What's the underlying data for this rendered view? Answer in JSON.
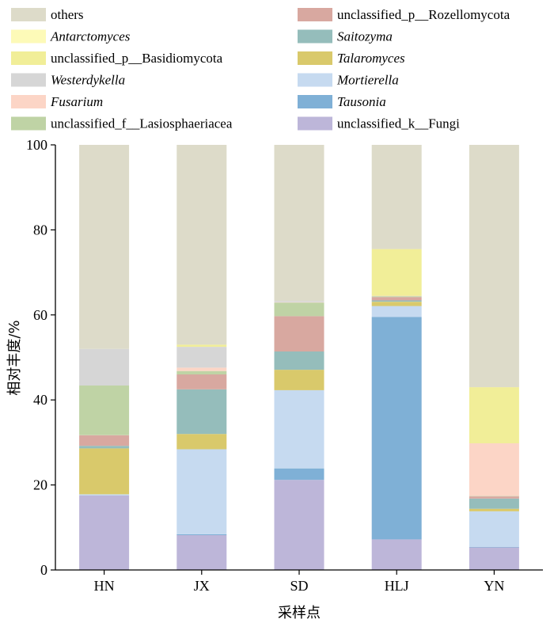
{
  "chart_data": {
    "type": "bar",
    "stacked": true,
    "xlabel": "采样点",
    "ylabel": "相对丰度/%",
    "ylim": [
      0,
      100
    ],
    "yticks": [
      0,
      20,
      40,
      60,
      80,
      100
    ],
    "categories": [
      "HN",
      "JX",
      "SD",
      "HLJ",
      "YN"
    ],
    "series": [
      {
        "name": "unclassified_k__Fungi",
        "color": "#bdb6d9",
        "italic": false,
        "values": [
          17.5,
          8.2,
          21.2,
          7.2,
          5.3
        ]
      },
      {
        "name": "Tausonia",
        "color": "#7fb0d6",
        "italic": true,
        "values": [
          0,
          0.2,
          2.7,
          52.3,
          0.1
        ]
      },
      {
        "name": "Mortierella",
        "color": "#c6daf0",
        "italic": true,
        "values": [
          0.3,
          20.0,
          18.4,
          2.6,
          8.4
        ]
      },
      {
        "name": "Talaromyces",
        "color": "#d9c96b",
        "italic": true,
        "values": [
          10.8,
          3.6,
          4.8,
          1.0,
          0.6
        ]
      },
      {
        "name": "Saitozyma",
        "color": "#95bdbb",
        "italic": true,
        "values": [
          0.6,
          10.5,
          4.3,
          0.3,
          2.4
        ]
      },
      {
        "name": "unclassified_p__Rozellomycota",
        "color": "#d8a8a0",
        "italic": false,
        "values": [
          2.5,
          3.5,
          8.3,
          0.8,
          0.5
        ]
      },
      {
        "name": "unclassified_f__Lasiosphaeriacea",
        "color": "#bfd3a5",
        "italic": false,
        "values": [
          11.7,
          0.8,
          3.2,
          0.2,
          0.1
        ]
      },
      {
        "name": "Fusarium",
        "color": "#fcd5c6",
        "italic": true,
        "values": [
          0,
          0.8,
          0.1,
          0.1,
          12.4
        ]
      },
      {
        "name": "Westerdykella",
        "color": "#d6d6d6",
        "italic": true,
        "values": [
          8.6,
          4.9,
          0.3,
          0,
          0
        ]
      },
      {
        "name": "unclassified_p__Basidiomycota",
        "color": "#f1ee98",
        "italic": false,
        "values": [
          0,
          0.5,
          0,
          11.0,
          13.2
        ]
      },
      {
        "name": "Antarctomyces",
        "color": "#fdfab8",
        "italic": true,
        "values": [
          0,
          0,
          0,
          0,
          0
        ]
      },
      {
        "name": "others",
        "color": "#dddbc9",
        "italic": false,
        "values": [
          48.0,
          47.0,
          36.7,
          24.5,
          57.0
        ]
      }
    ],
    "legend": {
      "placement": "top",
      "columns": [
        [
          "others",
          "Antarctomyces",
          "unclassified_p__Basidiomycota",
          "Westerdykella",
          "Fusarium",
          "unclassified_f__Lasiosphaeriacea"
        ],
        [
          "unclassified_p__Rozellomycota",
          "Saitozyma",
          "Talaromyces",
          "Mortierella",
          "Tausonia",
          "unclassified_k__Fungi"
        ]
      ]
    }
  }
}
